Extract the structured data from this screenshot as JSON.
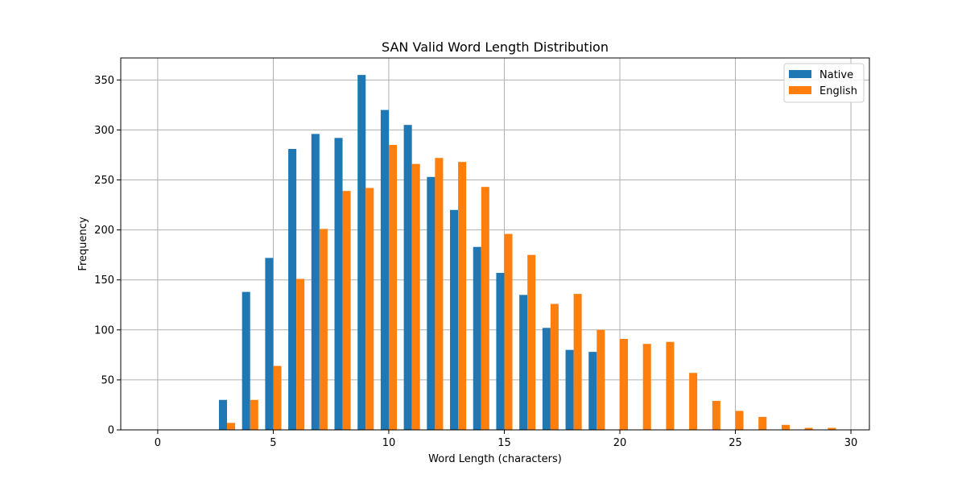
{
  "chart_data": {
    "type": "bar",
    "title": "SAN Valid Word Length Distribution",
    "xlabel": "Word Length (characters)",
    "ylabel": "Frequency",
    "xlim": [
      -1.6,
      30.8
    ],
    "ylim": [
      0,
      372
    ],
    "xticks": [
      0,
      5,
      10,
      15,
      20,
      25,
      30
    ],
    "yticks": [
      0,
      50,
      100,
      150,
      200,
      250,
      300,
      350
    ],
    "grid": true,
    "legend_position": "top-right",
    "x": [
      3,
      4,
      5,
      6,
      7,
      8,
      9,
      10,
      11,
      12,
      13,
      14,
      15,
      16,
      17,
      18,
      19,
      20,
      21,
      22,
      23,
      24,
      25,
      26,
      27,
      28,
      29
    ],
    "series": [
      {
        "name": "Native",
        "color": "#1f77b4",
        "values": [
          30,
          138,
          172,
          281,
          296,
          292,
          355,
          320,
          305,
          253,
          220,
          183,
          157,
          135,
          102,
          80,
          78,
          0,
          0,
          0,
          0,
          0,
          0,
          0,
          0,
          0,
          0
        ]
      },
      {
        "name": "English",
        "color": "#ff7f0e",
        "values": [
          7,
          30,
          64,
          151,
          201,
          239,
          242,
          285,
          266,
          272,
          268,
          243,
          196,
          175,
          126,
          136,
          100,
          91,
          86,
          88,
          57,
          29,
          19,
          13,
          5,
          2,
          2
        ]
      }
    ]
  }
}
